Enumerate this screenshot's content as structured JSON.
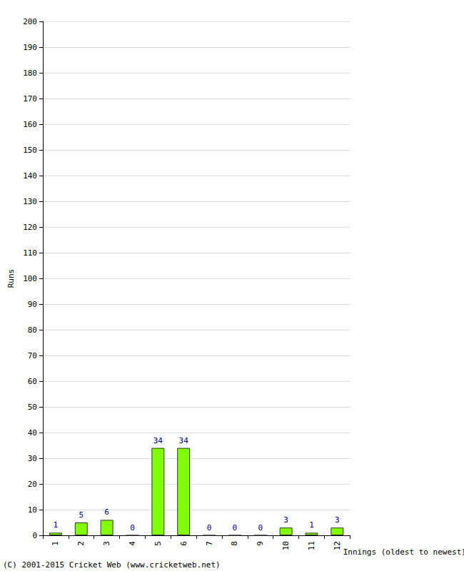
{
  "chart_data": {
    "type": "bar",
    "xlabel": "Innings (oldest to newest)",
    "ylabel": "Runs",
    "categories": [
      "1",
      "2",
      "3",
      "4",
      "5",
      "6",
      "7",
      "8",
      "9",
      "10",
      "11",
      "12"
    ],
    "values": [
      1,
      5,
      6,
      0,
      34,
      34,
      0,
      0,
      0,
      3,
      1,
      3
    ],
    "color": "#80ff00",
    "ylim": [
      0,
      200
    ],
    "yticks": [
      0,
      10,
      20,
      30,
      40,
      50,
      60,
      70,
      80,
      90,
      100,
      110,
      120,
      130,
      140,
      150,
      160,
      170,
      180,
      190,
      200
    ],
    "grid": true,
    "data_labels": true,
    "annotations": [
      "(C) 2001-2015 Cricket Web (www.cricketweb.net)"
    ]
  }
}
